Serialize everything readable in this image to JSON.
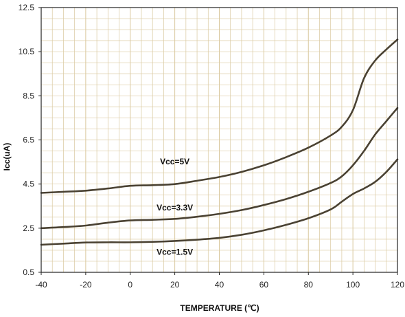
{
  "chart_data": {
    "type": "line",
    "title": "",
    "xlabel": "TEMPERATURE (℃)",
    "ylabel": "Icc(uA)",
    "xlim": [
      -40,
      120
    ],
    "ylim": [
      0.5,
      12.5
    ],
    "x_ticks": [
      -40,
      -20,
      0,
      20,
      40,
      60,
      80,
      100,
      120
    ],
    "y_ticks": [
      "0.5",
      "2.5",
      "4.5",
      "6.5",
      "8.5",
      "10.5",
      "12.5"
    ],
    "x_minor_step": 5,
    "y_minor_step": 0.5,
    "grid": true,
    "line_color": "#4a4233",
    "grid_color": "#d9c89e",
    "series": [
      {
        "name": "Vcc=5V",
        "x": [
          -40,
          -30,
          -20,
          -10,
          0,
          10,
          20,
          30,
          40,
          50,
          60,
          70,
          80,
          90,
          95,
          100,
          105,
          110,
          115,
          120
        ],
        "y": [
          4.1,
          4.15,
          4.2,
          4.3,
          4.42,
          4.45,
          4.5,
          4.65,
          4.82,
          5.05,
          5.35,
          5.72,
          6.15,
          6.7,
          7.1,
          7.85,
          9.3,
          10.1,
          10.6,
          11.05
        ],
        "label_at": [
          20,
          5.4
        ]
      },
      {
        "name": "Vcc=3.3V",
        "x": [
          -40,
          -30,
          -20,
          -10,
          0,
          10,
          20,
          30,
          40,
          50,
          60,
          70,
          80,
          90,
          95,
          100,
          105,
          110,
          115,
          120
        ],
        "y": [
          2.5,
          2.55,
          2.62,
          2.75,
          2.85,
          2.88,
          2.92,
          3.02,
          3.15,
          3.32,
          3.55,
          3.82,
          4.15,
          4.55,
          4.85,
          5.35,
          6.0,
          6.75,
          7.35,
          7.95
        ],
        "label_at": [
          20,
          3.3
        ]
      },
      {
        "name": "Vcc=1.5V",
        "x": [
          -40,
          -30,
          -20,
          -10,
          0,
          10,
          20,
          30,
          40,
          50,
          60,
          70,
          80,
          90,
          95,
          100,
          105,
          110,
          115,
          120
        ],
        "y": [
          1.75,
          1.8,
          1.85,
          1.86,
          1.86,
          1.88,
          1.92,
          1.98,
          2.06,
          2.2,
          2.4,
          2.65,
          2.95,
          3.35,
          3.7,
          4.05,
          4.3,
          4.6,
          5.05,
          5.62
        ],
        "label_at": [
          20,
          1.3
        ]
      }
    ]
  }
}
